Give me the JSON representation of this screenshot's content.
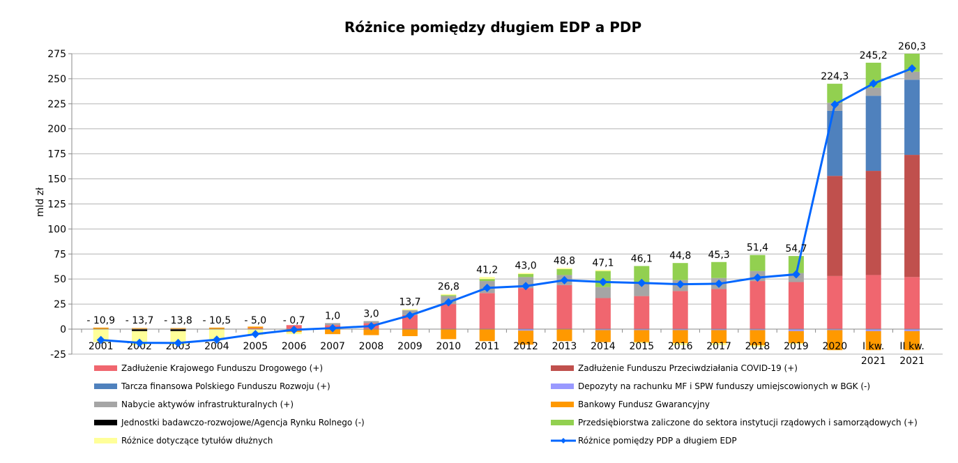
{
  "chart_data": {
    "type": "bar",
    "stacked": true,
    "title": "Różnice pomiędzy długiem EDP a PDP",
    "xlabel": "",
    "ylabel": "mld zł",
    "ylim": [
      -25,
      275
    ],
    "yticks": [
      -25,
      0,
      25,
      50,
      75,
      100,
      125,
      150,
      175,
      200,
      225,
      250,
      275
    ],
    "grid": true,
    "legend_position": "bottom",
    "categories": [
      "2001",
      "2002",
      "2003",
      "2004",
      "2005",
      "2006",
      "2007",
      "2008",
      "2009",
      "2010",
      "2011",
      "2012",
      "2013",
      "2014",
      "2015",
      "2016",
      "2017",
      "2018",
      "2019",
      "2020",
      "I kw.\n2021",
      "II kw.\n2021"
    ],
    "series": [
      {
        "name": "Zadłużenie Krajowego Funduszu Drogowego (+)",
        "color": "#f0666f",
        "values": [
          0,
          0,
          0,
          0,
          1,
          4,
          4,
          6,
          14,
          25,
          36,
          41,
          44,
          31,
          33,
          38,
          40,
          48,
          47,
          53,
          54,
          52
        ]
      },
      {
        "name": "Zadłużenie Funduszu Przeciwdziałania COVID-19 (+)",
        "color": "#c0504d",
        "values": [
          0,
          0,
          0,
          0,
          0,
          0,
          0,
          0,
          0,
          0,
          0,
          0,
          0,
          0,
          0,
          0,
          0,
          0,
          0,
          100,
          104,
          122
        ]
      },
      {
        "name": "Tarcza finansowa Polskiego Funduszu Rozwoju (+)",
        "color": "#4f81bd",
        "values": [
          0,
          0,
          0,
          0,
          0,
          0,
          0,
          0,
          0,
          0,
          0,
          0,
          0,
          0,
          0,
          0,
          0,
          0,
          0,
          65,
          75,
          75
        ]
      },
      {
        "name": "Depozyty na rachunku MF i SPW funduszy umiejscowionych w BGK (-)",
        "color": "#9999ff",
        "values": [
          0,
          0,
          0,
          0,
          0,
          0,
          0,
          0,
          0,
          0,
          0,
          -1.5,
          0,
          -1,
          -1,
          -1,
          -1,
          -1,
          -2,
          -1,
          -2,
          -2
        ]
      },
      {
        "name": "Nabycie aktywów infrastrukturalnych (+)",
        "color": "#a5a5a5",
        "values": [
          0,
          0,
          0,
          0,
          0,
          0,
          2,
          2,
          5,
          8,
          12,
          11,
          10,
          11,
          13,
          11,
          11,
          10,
          9,
          8,
          8,
          8
        ]
      },
      {
        "name": "Bankowy Fundusz Gwarancyjny",
        "color": "#ff9900",
        "values": [
          1.5,
          1,
          1,
          1.5,
          1.5,
          -3,
          -5,
          -6,
          -7,
          -10,
          -12,
          -14,
          -12,
          -12,
          -12,
          -13,
          -13,
          -15,
          -12,
          -20,
          -19,
          -19
        ]
      },
      {
        "name": "Jednostki badawczo-rozwojowe/Agencja Rynku Rolnego (-)",
        "color": "#000000",
        "values": [
          0,
          -2,
          -2,
          0,
          0,
          0,
          0,
          0,
          0,
          0,
          0,
          0,
          0,
          0,
          0,
          0,
          0,
          0,
          0,
          0,
          0,
          0
        ]
      },
      {
        "name": "Przedsiębiorstwa zaliczone do sektora instytucji rządowych i samorządowych (+)",
        "color": "#92d050",
        "values": [
          0,
          0,
          0,
          0,
          0,
          0,
          0,
          0,
          0,
          1,
          2,
          3,
          6,
          16,
          17,
          17,
          16,
          16,
          17,
          19,
          25,
          18
        ]
      },
      {
        "name": "Różnice dotyczące tytułów dłużnych",
        "color": "#ffff99",
        "values": [
          -13,
          -14,
          -14,
          -11,
          -6,
          -2,
          0,
          0,
          1,
          1,
          2,
          1,
          1,
          1,
          -1,
          -2,
          -2,
          -1.5,
          -1,
          0,
          0,
          0
        ]
      }
    ],
    "line": {
      "name": "Różnice pomiędzy PDP a długiem EDP",
      "color": "#0066ff",
      "values": [
        -10.9,
        -13.7,
        -13.8,
        -10.5,
        -5.0,
        -0.7,
        1.0,
        3.0,
        13.7,
        26.8,
        41.2,
        43.0,
        48.8,
        47.1,
        46.1,
        44.8,
        45.3,
        51.4,
        54.7,
        224.3,
        245.2,
        260.3
      ],
      "labels": [
        "- 10,9",
        "- 13,7",
        "- 13,8",
        "- 10,5",
        "- 5,0",
        "- 0,7",
        "1,0",
        "3,0",
        "13,7",
        "26,8",
        "41,2",
        "43,0",
        "48,8",
        "47,1",
        "46,1",
        "44,8",
        "45,3",
        "51,4",
        "54,7",
        "224,3",
        "245,2",
        "260,3"
      ]
    },
    "legend_order": [
      0,
      1,
      2,
      3,
      4,
      5,
      6,
      7,
      8,
      "line"
    ]
  }
}
